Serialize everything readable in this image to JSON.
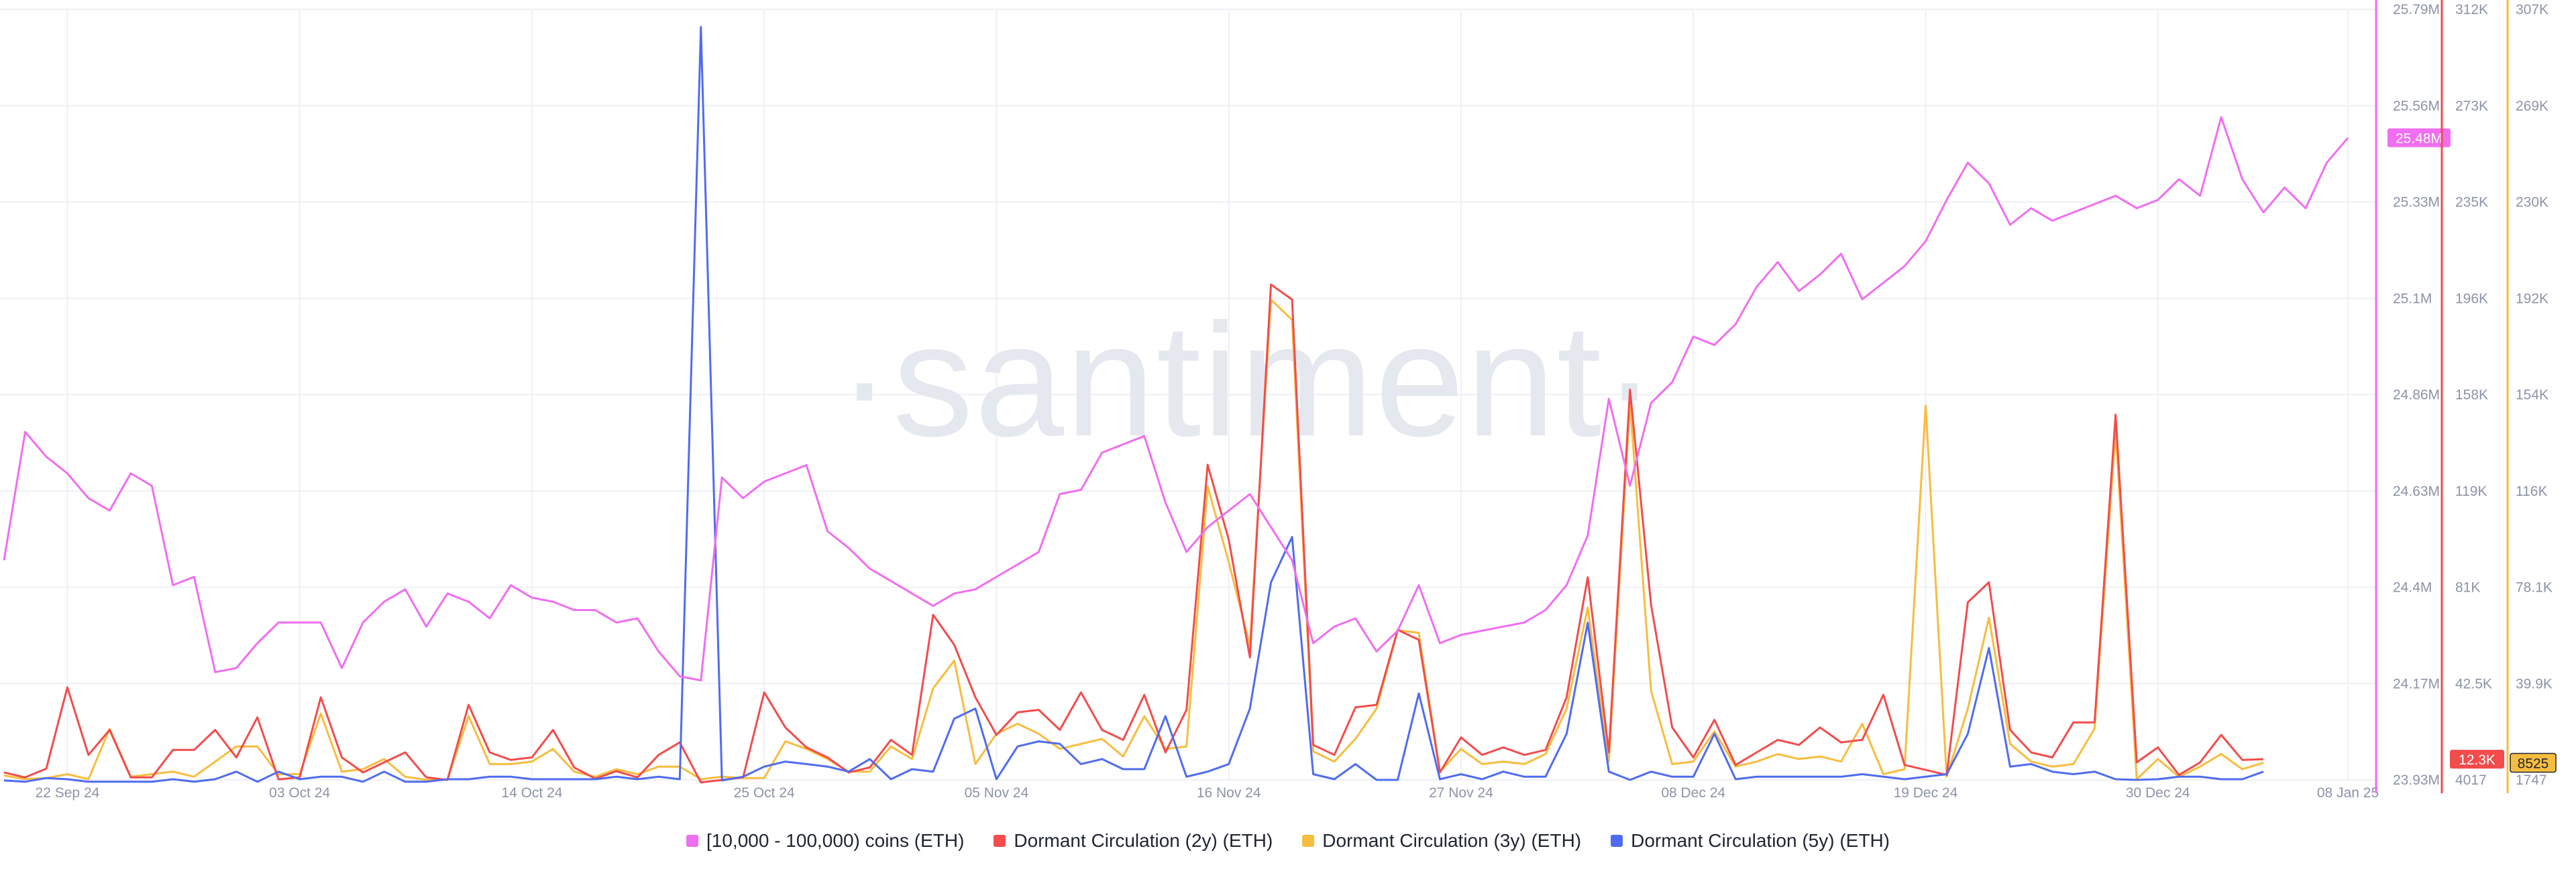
{
  "watermark": "·santiment·",
  "chart_data": {
    "type": "line",
    "x_dates": [
      "2024-09-19",
      "2024-09-20",
      "2024-09-21",
      "2024-09-22",
      "2024-09-23",
      "2024-09-24",
      "2024-09-25",
      "2024-09-26",
      "2024-09-27",
      "2024-09-28",
      "2024-09-29",
      "2024-09-30",
      "2024-10-01",
      "2024-10-02",
      "2024-10-03",
      "2024-10-04",
      "2024-10-05",
      "2024-10-06",
      "2024-10-07",
      "2024-10-08",
      "2024-10-09",
      "2024-10-10",
      "2024-10-11",
      "2024-10-12",
      "2024-10-13",
      "2024-10-14",
      "2024-10-15",
      "2024-10-16",
      "2024-10-17",
      "2024-10-18",
      "2024-10-19",
      "2024-10-20",
      "2024-10-21",
      "2024-10-22",
      "2024-10-23",
      "2024-10-24",
      "2024-10-25",
      "2024-10-26",
      "2024-10-27",
      "2024-10-28",
      "2024-10-29",
      "2024-10-30",
      "2024-10-31",
      "2024-11-01",
      "2024-11-02",
      "2024-11-03",
      "2024-11-04",
      "2024-11-05",
      "2024-11-06",
      "2024-11-07",
      "2024-11-08",
      "2024-11-09",
      "2024-11-10",
      "2024-11-11",
      "2024-11-12",
      "2024-11-13",
      "2024-11-14",
      "2024-11-15",
      "2024-11-16",
      "2024-11-17",
      "2024-11-18",
      "2024-11-19",
      "2024-11-20",
      "2024-11-21",
      "2024-11-22",
      "2024-11-23",
      "2024-11-24",
      "2024-11-25",
      "2024-11-26",
      "2024-11-27",
      "2024-11-28",
      "2024-11-29",
      "2024-11-30",
      "2024-12-01",
      "2024-12-02",
      "2024-12-03",
      "2024-12-04",
      "2024-12-05",
      "2024-12-06",
      "2024-12-07",
      "2024-12-08",
      "2024-12-09",
      "2024-12-10",
      "2024-12-11",
      "2024-12-12",
      "2024-12-13",
      "2024-12-14",
      "2024-12-15",
      "2024-12-16",
      "2024-12-17",
      "2024-12-18",
      "2024-12-19",
      "2024-12-20",
      "2024-12-21",
      "2024-12-22",
      "2024-12-23",
      "2024-12-24",
      "2024-12-25",
      "2024-12-26",
      "2024-12-27",
      "2024-12-28",
      "2024-12-29",
      "2024-12-30",
      "2024-12-31",
      "2025-01-01",
      "2025-01-02",
      "2025-01-03",
      "2025-01-04",
      "2025-01-05",
      "2025-01-06",
      "2025-01-07",
      "2025-01-08"
    ],
    "x_tick_labels": [
      "22 Sep 24",
      "03 Oct 24",
      "14 Oct 24",
      "25 Oct 24",
      "05 Nov 24",
      "16 Nov 24",
      "27 Nov 24",
      "08 Dec 24",
      "19 Dec 24",
      "30 Dec 24",
      "08 Jan 25"
    ],
    "x_tick_dates": [
      "2024-09-22",
      "2024-10-03",
      "2024-10-14",
      "2024-10-25",
      "2024-11-05",
      "2024-11-16",
      "2024-11-27",
      "2024-12-08",
      "2024-12-19",
      "2024-12-30",
      "2025-01-08"
    ],
    "axes": [
      {
        "id": "coins",
        "color": "#f06ef0",
        "min": 23930000,
        "max": 25790000,
        "ticks": [
          "25.79M",
          "25.56M",
          "25.33M",
          "25.1M",
          "24.86M",
          "24.63M",
          "24.4M",
          "24.17M",
          "23.93M"
        ],
        "current_label": "25.48M",
        "current_value": 25480000
      },
      {
        "id": "dormant2y",
        "color": "#f24c4c",
        "min": 4017,
        "max": 312000,
        "ticks": [
          "312K",
          "273K",
          "235K",
          "196K",
          "158K",
          "119K",
          "81K",
          "42.5K",
          "4017"
        ],
        "current_label": "12.3K",
        "current_value": 12300
      },
      {
        "id": "dormant3y",
        "color": "#f7bd3e",
        "min": 1747,
        "max": 307000,
        "ticks": [
          "307K",
          "269K",
          "230K",
          "192K",
          "154K",
          "116K",
          "78.1K",
          "39.9K",
          "1747"
        ],
        "current_label": "8525",
        "current_value": 8525
      }
    ],
    "series": [
      {
        "name": "[10,000 - 100,000) coins (ETH)",
        "color": "#f06ef0",
        "axis": "coins",
        "values": [
          24.46,
          24.77,
          24.71,
          24.67,
          24.61,
          24.58,
          24.67,
          24.64,
          24.4,
          24.42,
          24.19,
          24.2,
          24.26,
          24.31,
          24.31,
          24.31,
          24.2,
          24.31,
          24.36,
          24.39,
          24.3,
          24.38,
          24.36,
          24.32,
          24.4,
          24.37,
          24.36,
          24.34,
          24.34,
          24.31,
          24.32,
          24.24,
          24.18,
          24.17,
          24.66,
          24.61,
          24.65,
          24.67,
          24.69,
          24.53,
          24.49,
          24.44,
          24.41,
          24.38,
          24.35,
          24.38,
          24.39,
          24.42,
          24.45,
          24.48,
          24.62,
          24.63,
          24.72,
          24.74,
          24.76,
          24.6,
          24.48,
          24.54,
          24.58,
          24.62,
          24.54,
          24.46,
          24.26,
          24.3,
          24.32,
          24.24,
          24.29,
          24.4,
          24.26,
          24.28,
          24.29,
          24.3,
          24.31,
          24.34,
          24.4,
          24.52,
          24.85,
          24.64,
          24.84,
          24.89,
          25.0,
          24.98,
          25.03,
          25.12,
          25.18,
          25.11,
          25.15,
          25.2,
          25.09,
          25.13,
          25.17,
          25.23,
          25.33,
          25.42,
          25.37,
          25.27,
          25.31,
          25.28,
          25.3,
          25.32,
          25.34,
          25.31,
          25.33,
          25.38,
          25.34,
          25.53,
          25.38,
          25.3,
          25.36,
          25.31,
          25.42,
          25.48
        ]
      },
      {
        "name": "Dormant Circulation (2y) (ETH)",
        "color": "#f24c4c",
        "axis": "dormant2y",
        "values": [
          7000,
          5000,
          8500,
          41000,
          14000,
          24000,
          5000,
          5000,
          16000,
          16000,
          24000,
          13000,
          29000,
          4200,
          5000,
          37000,
          13000,
          7000,
          11000,
          15000,
          5000,
          4017,
          34000,
          15000,
          12000,
          13000,
          24000,
          9000,
          4500,
          7500,
          5000,
          14000,
          19000,
          3000,
          4000,
          5000,
          39000,
          25000,
          17000,
          13000,
          7000,
          9000,
          20000,
          14000,
          70000,
          58000,
          37000,
          22000,
          31000,
          32000,
          24000,
          39000,
          24000,
          20000,
          38000,
          15000,
          32000,
          130000,
          100000,
          53000,
          202000,
          196000,
          18000,
          14000,
          33000,
          34000,
          64000,
          60000,
          7000,
          21000,
          14000,
          17000,
          14000,
          16000,
          37000,
          85000,
          15000,
          160000,
          74000,
          25000,
          13000,
          28000,
          10000,
          15000,
          20000,
          18000,
          25000,
          19000,
          20000,
          38000,
          10000,
          8000,
          6000,
          75000,
          83000,
          24000,
          15000,
          13000,
          27000,
          27000,
          150000,
          11000,
          17000,
          6000,
          11000,
          22000,
          12000,
          12300
        ]
      },
      {
        "name": "Dormant Circulation (3y) (ETH)",
        "color": "#f7bd3e",
        "axis": "dormant3y",
        "values": [
          3500,
          2000,
          2500,
          4000,
          2000,
          22000,
          3000,
          4000,
          5000,
          3000,
          9000,
          15000,
          15000,
          4000,
          4000,
          28000,
          5000,
          6000,
          10000,
          3000,
          1747,
          1747,
          27000,
          8000,
          8000,
          9000,
          14000,
          5000,
          3000,
          6000,
          4000,
          7000,
          7000,
          2000,
          3000,
          2500,
          2500,
          17000,
          14000,
          10000,
          5000,
          5000,
          15000,
          10000,
          38000,
          49000,
          8000,
          20000,
          24000,
          20000,
          14000,
          16000,
          18000,
          11000,
          27000,
          14000,
          15000,
          118000,
          88000,
          55000,
          192000,
          184000,
          13000,
          9000,
          18000,
          30000,
          61000,
          60000,
          5000,
          14000,
          8000,
          9000,
          8000,
          12000,
          30000,
          70000,
          9000,
          151000,
          37000,
          8000,
          9000,
          21000,
          7000,
          9000,
          12000,
          10000,
          11000,
          9000,
          24000,
          4000,
          6000,
          150000,
          3000,
          30000,
          66000,
          16000,
          9000,
          7000,
          8000,
          22000,
          140000,
          2000,
          10000,
          3000,
          7000,
          12000,
          6000,
          8525
        ]
      },
      {
        "name": "Dormant Circulation (5y) (ETH)",
        "color": "#4f6cf0",
        "axis": "dormant3y",
        "values": [
          1500,
          1000,
          2500,
          2000,
          1000,
          1000,
          1000,
          1000,
          2000,
          1000,
          2000,
          5000,
          1000,
          5000,
          2000,
          3000,
          3000,
          1000,
          5000,
          1000,
          1000,
          2000,
          2000,
          3000,
          3000,
          2000,
          2000,
          2000,
          2000,
          3000,
          2000,
          3000,
          2000,
          300000,
          1500,
          3000,
          7000,
          9000,
          8000,
          7000,
          5000,
          10000,
          2000,
          6000,
          5000,
          26000,
          30000,
          2000,
          15000,
          17000,
          16000,
          8000,
          10000,
          6000,
          6000,
          27000,
          3000,
          5000,
          8000,
          30000,
          80000,
          98000,
          4000,
          2000,
          8000,
          1747,
          1747,
          36000,
          2000,
          4000,
          2000,
          5000,
          3000,
          3000,
          20000,
          64000,
          5000,
          1747,
          5000,
          3000,
          3000,
          20000,
          2000,
          3000,
          3000,
          3000,
          3000,
          3000,
          4000,
          3000,
          2000,
          3000,
          4000,
          20000,
          54000,
          7000,
          8000,
          5000,
          4000,
          5000,
          2000,
          1747,
          2000,
          3000,
          3000,
          2000,
          2000,
          5000
        ]
      }
    ]
  }
}
